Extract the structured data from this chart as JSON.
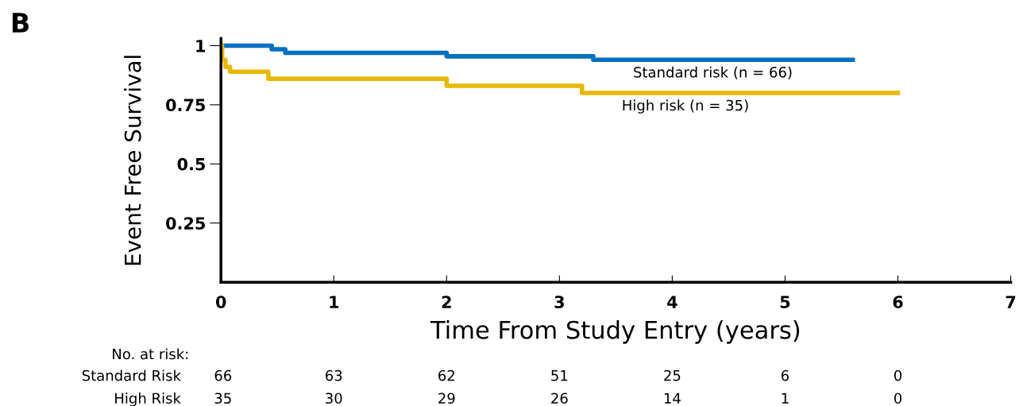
{
  "chart_data": {
    "type": "step",
    "title": "B",
    "xlabel": "Time From Study Entry (years)",
    "ylabel": "Event Free Survival",
    "series": [
      {
        "name": "Standard risk (n = 66)",
        "color": "#0070c0",
        "x": [
          0,
          0.45,
          0.57,
          2.0,
          3.3,
          5.6
        ],
        "values": [
          1,
          0.985,
          0.97,
          0.955,
          0.94,
          0.94
        ]
      },
      {
        "name": "High risk (n = 35)",
        "color": "#e8b800",
        "x": [
          0,
          0.01,
          0.04,
          0.08,
          0.42,
          2.0,
          3.2,
          6.0
        ],
        "values": [
          1,
          0.94,
          0.91,
          0.89,
          0.86,
          0.83,
          0.8,
          0.8
        ]
      }
    ],
    "xlim": [
      0,
      7
    ],
    "xticks": [
      0,
      1,
      2,
      3,
      4,
      5,
      6,
      7
    ],
    "ylim": [
      0,
      1.03
    ],
    "yticks": [
      0.25,
      0.5,
      0.75,
      1
    ],
    "grid": false,
    "legend": false,
    "annotations": [
      "No. at risk:",
      "Standard Risk",
      "66",
      "63",
      "62",
      "51",
      "25",
      "6",
      "0",
      "High Risk",
      "35",
      "30",
      "29",
      "26",
      "14",
      "1",
      "0"
    ]
  }
}
